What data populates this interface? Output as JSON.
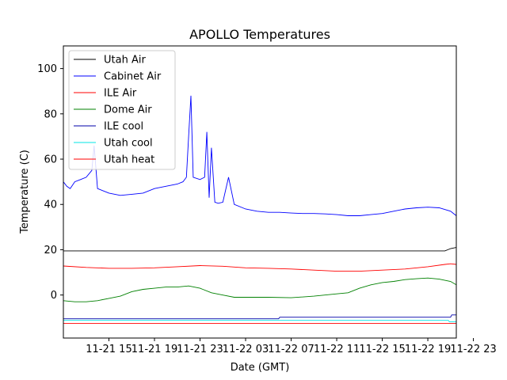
{
  "chart_data": {
    "type": "line",
    "title": "APOLLO Temperatures",
    "xlabel": "Date (GMT)",
    "ylabel": "Temperature (C)",
    "xlim": [
      0,
      34.5
    ],
    "ylim": [
      -19,
      110
    ],
    "y_ticks": [
      0,
      20,
      40,
      60,
      80,
      100
    ],
    "x_ticks": [
      {
        "value": 4,
        "label": "11-21 15"
      },
      {
        "value": 8,
        "label": "11-21 19"
      },
      {
        "value": 12,
        "label": "11-21 23"
      },
      {
        "value": 16,
        "label": "11-22 03"
      },
      {
        "value": 20,
        "label": "11-22 07"
      },
      {
        "value": 24,
        "label": "11-22 11"
      },
      {
        "value": 28,
        "label": "11-22 15"
      },
      {
        "value": 32,
        "label": "11-22 19"
      },
      {
        "value": 36,
        "label": "11-22 23"
      }
    ],
    "grid": false,
    "legend_position": "top-left",
    "series": [
      {
        "name": "Utah Air",
        "color": "#000000",
        "x": [
          0,
          5,
          10,
          15,
          20,
          25,
          30,
          33.5,
          34,
          34.5
        ],
        "y": [
          19.5,
          19.5,
          19.5,
          19.5,
          19.5,
          19.5,
          19.5,
          19.5,
          20.5,
          21
        ]
      },
      {
        "name": "Cabinet Air",
        "color": "#0000ff",
        "x": [
          0,
          0.3,
          0.6,
          1,
          1.5,
          2,
          2.5,
          2.7,
          3,
          4,
          5,
          6,
          7,
          8,
          9,
          10,
          10.5,
          10.8,
          11,
          11.2,
          11.4,
          12,
          12.4,
          12.6,
          12.8,
          13,
          13.3,
          13.6,
          14,
          14.5,
          15,
          16,
          17,
          18,
          19,
          20,
          21,
          22,
          23,
          24,
          25,
          26,
          27,
          28,
          29,
          30,
          31,
          32,
          33,
          34,
          34.5
        ],
        "y": [
          50,
          48,
          47,
          50,
          51,
          52,
          55,
          66,
          47,
          45,
          44,
          44.5,
          45,
          47,
          48,
          49,
          50,
          52,
          70,
          88,
          52,
          51,
          52,
          72,
          43,
          65,
          41,
          40.5,
          41,
          52,
          40,
          38,
          37,
          36.5,
          36.5,
          36.2,
          36,
          36,
          35.8,
          35.5,
          35,
          35,
          35.5,
          36,
          37,
          38,
          38.5,
          38.8,
          38.5,
          37,
          35
        ]
      },
      {
        "name": "ILE Air",
        "color": "#ff0000",
        "x": [
          0,
          2,
          4,
          6,
          8,
          10,
          12,
          14,
          16,
          18,
          20,
          22,
          24,
          26,
          28,
          30,
          32,
          33.5,
          34,
          34.5
        ],
        "y": [
          12.8,
          12.2,
          11.8,
          11.8,
          12,
          12.5,
          13,
          12.7,
          12,
          11.8,
          11.5,
          11,
          10.5,
          10.5,
          11,
          11.5,
          12.5,
          13.5,
          13.8,
          13.5
        ]
      },
      {
        "name": "Dome Air",
        "color": "#008000",
        "x": [
          0,
          1,
          2,
          3,
          4,
          5,
          6,
          7,
          8,
          9,
          10,
          11,
          12,
          13,
          14,
          15,
          16,
          18,
          20,
          22,
          24,
          25,
          26,
          27,
          28,
          29,
          30,
          31,
          32,
          33,
          33.5,
          34,
          34.5
        ],
        "y": [
          -2.5,
          -3,
          -3,
          -2.5,
          -1.5,
          -0.5,
          1.5,
          2.5,
          3,
          3.5,
          3.5,
          4,
          3,
          1,
          0,
          -1,
          -1,
          -1,
          -1.2,
          -0.5,
          0.5,
          1,
          3,
          4.5,
          5.5,
          6,
          6.8,
          7.2,
          7.5,
          7,
          6.5,
          6,
          4.5
        ]
      },
      {
        "name": "ILE cool",
        "color": "#0000aa",
        "x": [
          0,
          18.9,
          19,
          34,
          34.1,
          34.5
        ],
        "y": [
          -10.5,
          -10.5,
          -9.8,
          -9.8,
          -8.8,
          -8.8
        ]
      },
      {
        "name": "Utah cool",
        "color": "#00e5e5",
        "x": [
          0,
          33.8,
          33.9,
          34.5
        ],
        "y": [
          -11.2,
          -11.2,
          -11.8,
          -11.8
        ]
      },
      {
        "name": "Utah heat",
        "color": "#ff0000",
        "x": [
          0,
          34.5
        ],
        "y": [
          -12.5,
          -12.5
        ]
      }
    ]
  }
}
